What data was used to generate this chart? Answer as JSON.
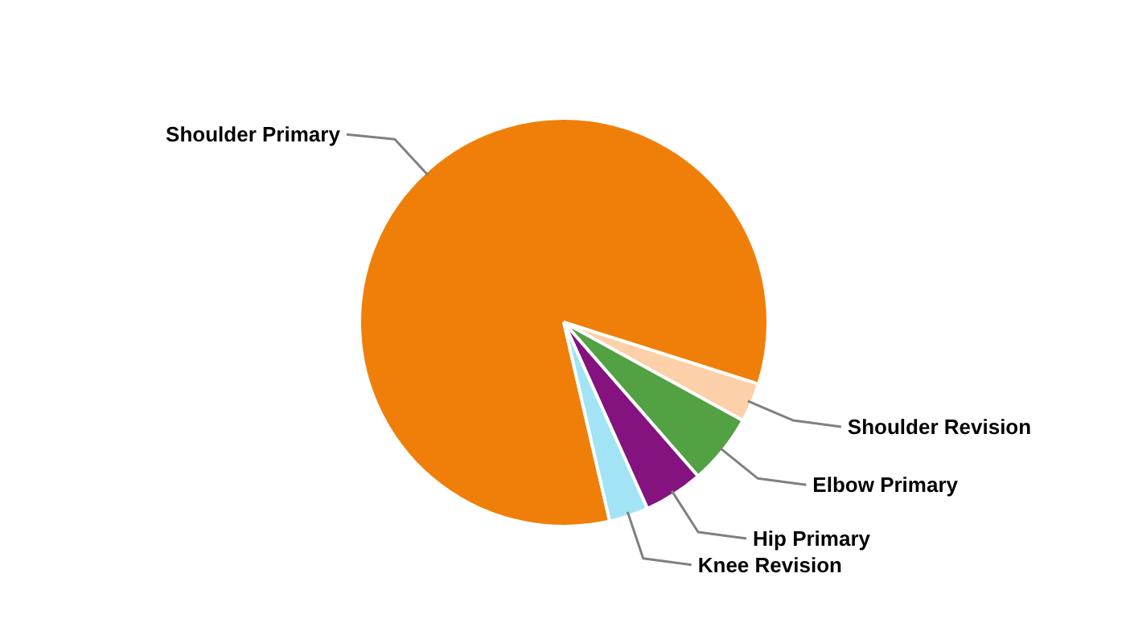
{
  "chart_data": {
    "type": "pie",
    "categories": [
      "Shoulder Primary",
      "Shoulder Revision",
      "Elbow Primary",
      "Hip Primary",
      "Knee Revision"
    ],
    "values": [
      83.5,
      3.1,
      5.6,
      4.7,
      3.1
    ],
    "colors": [
      "#f07f09",
      "#fcd0a8",
      "#52a142",
      "#84127f",
      "#a2e4f6"
    ]
  }
}
